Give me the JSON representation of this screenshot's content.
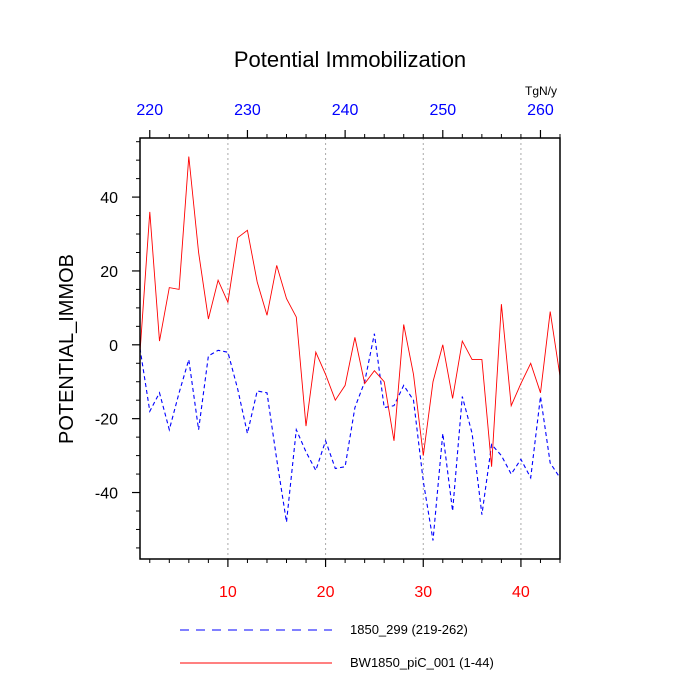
{
  "chart_data": {
    "type": "line",
    "title": "Potential Immobilization",
    "ylabel": "POTENTIAL_IMMOB",
    "top_axis_units": "TgN/y",
    "xlim": [
      1,
      44
    ],
    "ylim": [
      -58,
      56
    ],
    "x_ticks": [
      10,
      20,
      30,
      40
    ],
    "x_tick_labels": [
      "10",
      "20",
      "30",
      "40"
    ],
    "top_ticks": [
      220,
      230,
      240,
      250,
      260
    ],
    "top_tick_labels": [
      "220",
      "230",
      "240",
      "250",
      "260"
    ],
    "top_offset": 218,
    "y_ticks": [
      -40,
      -20,
      0,
      20,
      40
    ],
    "y_tick_labels": [
      "-40",
      "-20",
      "0",
      "20",
      "40"
    ],
    "series": [
      {
        "name": "1850_299 (219-262)",
        "color": "#0000ff",
        "style": "dashed",
        "x": [
          1,
          2,
          3,
          4,
          5,
          6,
          7,
          8,
          9,
          10,
          11,
          12,
          13,
          14,
          15,
          16,
          17,
          18,
          19,
          20,
          21,
          22,
          23,
          24,
          25,
          26,
          27,
          28,
          29,
          30,
          31,
          32,
          33,
          34,
          35,
          36,
          37,
          38,
          39,
          40,
          41,
          42,
          43,
          44
        ],
        "values": [
          -1,
          -18,
          -13,
          -23,
          -13,
          -4,
          -23,
          -3,
          -1.5,
          -2,
          -12,
          -24,
          -12.5,
          -13,
          -31,
          -48,
          -23,
          -29,
          -34,
          -26,
          -33.5,
          -33,
          -17,
          -10,
          3,
          -17,
          -16.5,
          -11,
          -15,
          -37,
          -53,
          -24,
          -45,
          -14,
          -24,
          -46,
          -27,
          -30,
          -35,
          -31,
          -36,
          -14,
          -32,
          -36
        ]
      },
      {
        "name": "BW1850_piC_001 (1-44)",
        "color": "#ff0000",
        "style": "solid",
        "x": [
          1,
          2,
          3,
          4,
          5,
          6,
          7,
          8,
          9,
          10,
          11,
          12,
          13,
          14,
          15,
          16,
          17,
          18,
          19,
          20,
          21,
          22,
          23,
          24,
          25,
          26,
          27,
          28,
          29,
          30,
          31,
          32,
          33,
          34,
          35,
          36,
          37,
          38,
          39,
          40,
          41,
          42,
          43,
          44
        ],
        "values": [
          -2,
          36,
          1,
          15.5,
          15,
          51,
          25,
          7,
          17.5,
          11.5,
          29,
          31,
          17,
          8,
          21.5,
          12.5,
          7.5,
          -22,
          -2,
          -8,
          -15,
          -11,
          2,
          -10.5,
          -7,
          -10,
          -26,
          5.5,
          -8,
          -30,
          -10,
          0,
          -14.5,
          1,
          -4,
          -4,
          -33,
          11,
          -16.5,
          -10.5,
          -5,
          -13,
          9,
          -8.5
        ]
      }
    ],
    "legend_position": "bottom"
  }
}
